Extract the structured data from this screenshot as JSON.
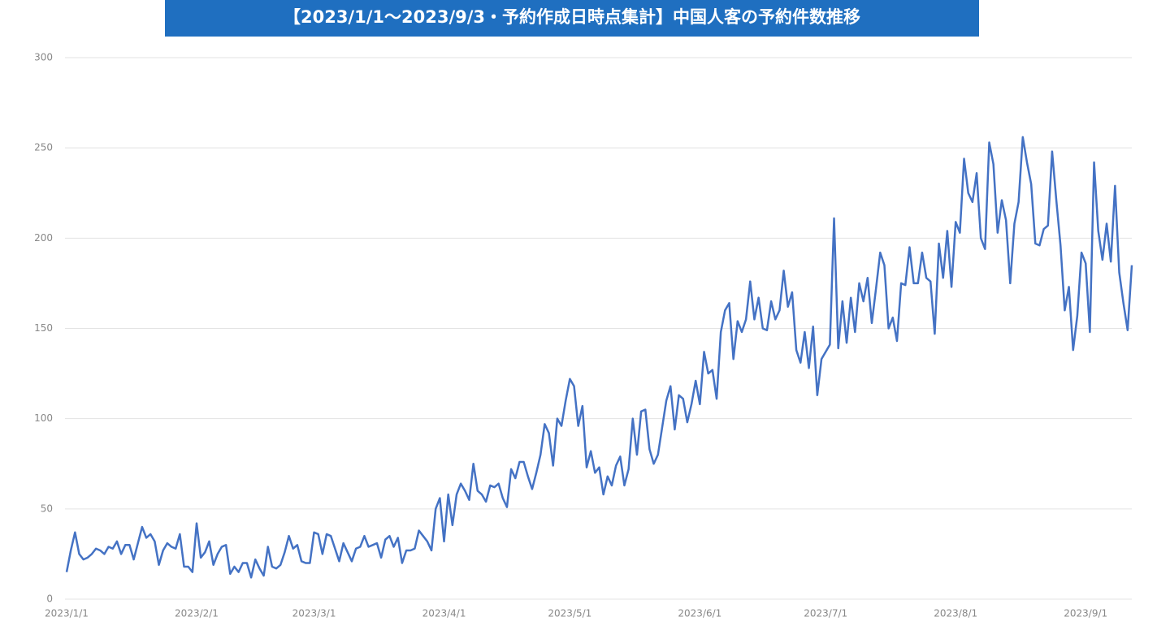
{
  "chart_data": {
    "type": "line",
    "title": "【2023/1/1～2023/9/3・予約作成日時点集計】中国人客の予約件数推移",
    "categories": [
      "2023/1/1",
      null,
      null,
      null,
      null,
      null,
      null,
      null,
      null,
      null,
      null,
      null,
      null,
      null,
      null,
      null,
      null,
      null,
      null,
      null,
      null,
      null,
      null,
      null,
      null,
      null,
      null,
      null,
      null,
      null,
      null,
      "2023/2/1",
      null,
      null,
      null,
      null,
      null,
      null,
      null,
      null,
      null,
      null,
      null,
      null,
      null,
      null,
      null,
      null,
      null,
      null,
      null,
      null,
      null,
      null,
      null,
      null,
      null,
      null,
      null,
      "2023/3/1",
      null,
      null,
      null,
      null,
      null,
      null,
      null,
      null,
      null,
      null,
      null,
      null,
      null,
      null,
      null,
      null,
      null,
      null,
      null,
      null,
      null,
      null,
      null,
      null,
      null,
      null,
      null,
      null,
      null,
      null,
      "2023/4/1",
      null,
      null,
      null,
      null,
      null,
      null,
      null,
      null,
      null,
      null,
      null,
      null,
      null,
      null,
      null,
      null,
      null,
      null,
      null,
      null,
      null,
      null,
      null,
      null,
      null,
      null,
      null,
      null,
      null,
      "2023/5/1",
      null,
      null,
      null,
      null,
      null,
      null,
      null,
      null,
      null,
      null,
      null,
      null,
      null,
      null,
      null,
      null,
      null,
      null,
      null,
      null,
      null,
      null,
      null,
      null,
      null,
      null,
      null,
      null,
      null,
      null,
      "2023/6/1",
      null,
      null,
      null,
      null,
      null,
      null,
      null,
      null,
      null,
      null,
      null,
      null,
      null,
      null,
      null,
      null,
      null,
      null,
      null,
      null,
      null,
      null,
      null,
      null,
      null,
      null,
      null,
      null,
      null,
      "2023/7/1",
      null,
      null,
      null,
      null,
      null,
      null,
      null,
      null,
      null,
      null,
      null,
      null,
      null,
      null,
      null,
      null,
      null,
      null,
      null,
      null,
      null,
      null,
      null,
      null,
      null,
      null,
      null,
      null,
      null,
      null,
      "2023/8/1",
      null,
      null,
      null,
      null,
      null,
      null,
      null,
      null,
      null,
      null,
      null,
      null,
      null,
      null,
      null,
      null,
      null,
      null,
      null,
      null,
      null,
      null,
      null,
      null,
      null,
      null,
      null,
      null,
      null,
      null,
      "2023/9/1",
      null,
      null,
      null,
      null,
      null,
      null,
      null,
      null,
      null,
      null,
      null
    ],
    "values": [
      15,
      27,
      37,
      25,
      22,
      23,
      25,
      28,
      27,
      25,
      29,
      28,
      32,
      25,
      30,
      30,
      22,
      31,
      40,
      34,
      36,
      32,
      19,
      27,
      31,
      29,
      28,
      36,
      18,
      18,
      15,
      42,
      23,
      26,
      32,
      19,
      25,
      29,
      30,
      14,
      18,
      15,
      20,
      20,
      12,
      22,
      17,
      13,
      29,
      18,
      17,
      19,
      26,
      35,
      28,
      30,
      21,
      20,
      20,
      37,
      36,
      25,
      36,
      35,
      28,
      21,
      31,
      26,
      21,
      28,
      29,
      35,
      29,
      30,
      31,
      23,
      33,
      35,
      29,
      34,
      20,
      27,
      27,
      28,
      38,
      35,
      32,
      27,
      50,
      56,
      32,
      58,
      41,
      58,
      64,
      60,
      55,
      75,
      60,
      58,
      54,
      63,
      62,
      64,
      56,
      51,
      72,
      67,
      76,
      76,
      68,
      61,
      70,
      80,
      97,
      92,
      74,
      100,
      96,
      110,
      122,
      118,
      96,
      107,
      73,
      82,
      70,
      73,
      58,
      68,
      63,
      74,
      79,
      63,
      72,
      100,
      80,
      104,
      105,
      83,
      75,
      80,
      95,
      110,
      118,
      94,
      113,
      111,
      98,
      108,
      121,
      108,
      137,
      125,
      127,
      111,
      148,
      160,
      164,
      133,
      154,
      148,
      155,
      176,
      155,
      167,
      150,
      149,
      165,
      155,
      160,
      182,
      162,
      170,
      138,
      131,
      148,
      128,
      151,
      113,
      133,
      137,
      141,
      211,
      139,
      165,
      142,
      167,
      148,
      175,
      165,
      178,
      153,
      172,
      192,
      185,
      150,
      156,
      143,
      175,
      174,
      195,
      175,
      175,
      192,
      178,
      176,
      147,
      197,
      178,
      204,
      173,
      209,
      203,
      244,
      225,
      220,
      236,
      200,
      194,
      253,
      241,
      203,
      221,
      210,
      175,
      208,
      220,
      256,
      242,
      230,
      197,
      196,
      205,
      207,
      248,
      221,
      196,
      160,
      173,
      138,
      157,
      192,
      186,
      148,
      242,
      204,
      188,
      208,
      187,
      229,
      181,
      164,
      149,
      185
    ],
    "color": "#4472c4",
    "ylim": [
      0,
      300
    ],
    "yticks": [
      0,
      50,
      100,
      150,
      200,
      250,
      300
    ],
    "grid": true
  }
}
